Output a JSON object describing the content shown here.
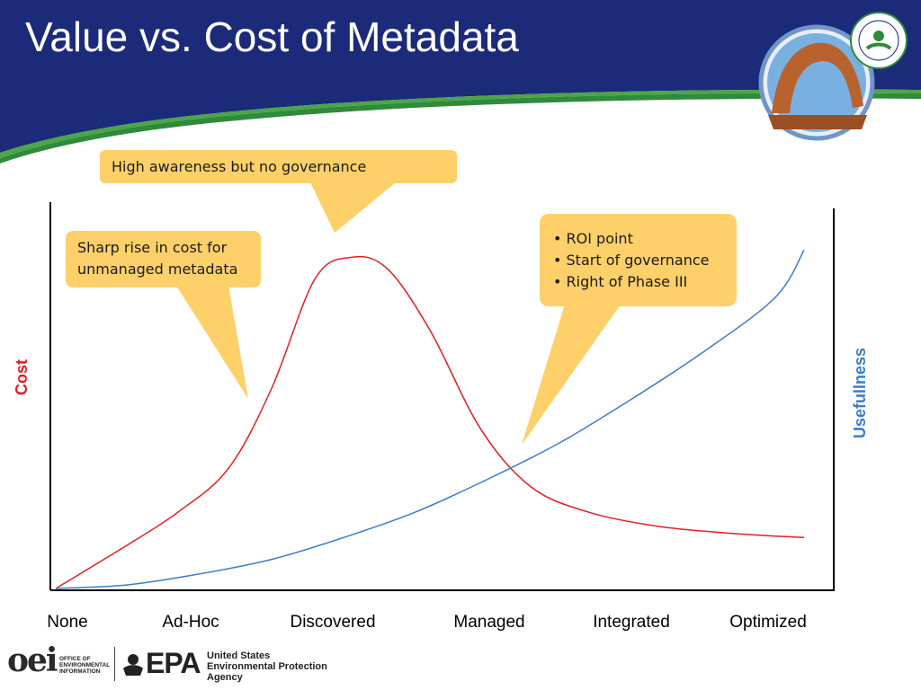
{
  "slide": {
    "title": "Value vs. Cost of Metadata"
  },
  "chart_data": {
    "type": "line",
    "categories": [
      "None",
      "Ad-Hoc",
      "Discovered",
      "Managed",
      "Integrated",
      "Optimized"
    ],
    "y_left_label": "Cost",
    "y_right_label": "Usefullness",
    "series": [
      {
        "name": "Cost",
        "color": "#e31e24",
        "x": [
          0,
          0.5,
          0.85,
          1.2,
          1.5,
          1.8,
          2.05,
          2.3,
          2.6,
          2.95,
          3.3,
          3.7,
          4.2,
          4.75,
          5.2
        ],
        "values": [
          0,
          12,
          21,
          33,
          55,
          85,
          91,
          88,
          71,
          44,
          28,
          21,
          17,
          15,
          14
        ]
      },
      {
        "name": "Usefullness",
        "color": "#3b7cc9",
        "x": [
          0,
          0.5,
          1.0,
          1.5,
          2.0,
          2.5,
          3.0,
          3.5,
          4.0,
          4.5,
          5.0,
          5.2
        ],
        "values": [
          0,
          1,
          4,
          8,
          14,
          21,
          30,
          40,
          52,
          65,
          80,
          93
        ]
      }
    ],
    "ylim": [
      0,
      100
    ],
    "grid": false,
    "legend": "none",
    "annotations": [
      "High awareness but no governance",
      "Sharp rise in cost for unmanaged metadata",
      "• ROI point",
      "• Start of governance",
      "• Right of Phase III"
    ]
  },
  "callouts": {
    "top": "High awareness but no governance",
    "left_line1": "Sharp rise in cost for",
    "left_line2": "unmanaged metadata",
    "right_line1": "• ROI point",
    "right_line2": "• Start of governance",
    "right_line3": "• Right of Phase III"
  },
  "footer": {
    "oei_mark": "oei",
    "oei_line1": "OFFICE OF",
    "oei_line2": "ENVIRONMENTAL",
    "oei_line3": "INFORMATION",
    "epa_mark": "EPA",
    "epa_line1": "United States",
    "epa_line2": "Environmental Protection",
    "epa_line3": "Agency"
  },
  "colors": {
    "header_blue": "#1c2a7a",
    "header_green": "#4ca648",
    "cost_red": "#e31e24",
    "usefulness_blue": "#3b7cc9",
    "callout_fill": "#fdd069"
  }
}
